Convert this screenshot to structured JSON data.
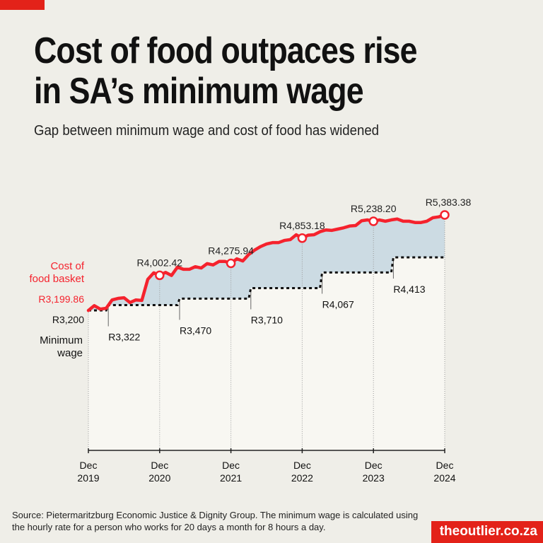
{
  "title": [
    "Cost of food outpaces rise",
    "in SA’s minimum wage"
  ],
  "subtitle": "Gap between minimum wage and cost of food has widened",
  "source": [
    "Source: Pietermaritzburg Economic Justice & Dignity Group. The minimum wage is calculated using",
    "the hourly rate for a person who works for 20 days a month for 8 hours a day."
  ],
  "brand": "theoutlier.co.za",
  "colors": {
    "food": "#f5222d",
    "wage": "#111111",
    "gap": "#ccdbe3",
    "accent": "#e32219"
  },
  "chart_data": {
    "type": "line",
    "ylim": [
      0,
      5500
    ],
    "x_start": "2019-12",
    "x_end": "2024-12",
    "x_ticks": [
      {
        "month": 0,
        "label": [
          "Dec",
          "2019"
        ]
      },
      {
        "month": 12,
        "label": [
          "Dec",
          "2020"
        ]
      },
      {
        "month": 24,
        "label": [
          "Dec",
          "2021"
        ]
      },
      {
        "month": 36,
        "label": [
          "Dec",
          "2022"
        ]
      },
      {
        "month": 48,
        "label": [
          "Dec",
          "2023"
        ]
      },
      {
        "month": 60,
        "label": [
          "Dec",
          "2024"
        ]
      }
    ],
    "series": [
      {
        "name": "Cost of food basket",
        "frequency": "monthly",
        "values": [
          3199.86,
          3310,
          3230,
          3250,
          3440,
          3475,
          3490,
          3380,
          3440,
          3430,
          3910,
          4060,
          4002.42,
          4070,
          4000,
          4190,
          4140,
          4140,
          4200,
          4170,
          4270,
          4240,
          4320,
          4320,
          4275.94,
          4380,
          4330,
          4480,
          4580,
          4660,
          4720,
          4750,
          4750,
          4800,
          4820,
          4930,
          4853.18,
          4920,
          4930,
          5000,
          5040,
          5030,
          5060,
          5090,
          5130,
          5140,
          5250,
          5270,
          5238.2,
          5270,
          5240,
          5270,
          5290,
          5240,
          5240,
          5210,
          5210,
          5240,
          5320,
          5340,
          5383.38
        ]
      },
      {
        "name": "Minimum wage",
        "steps": [
          {
            "from_month": 0,
            "value": 3200
          },
          {
            "from_month": 3,
            "value": 3322
          },
          {
            "from_month": 15,
            "value": 3470
          },
          {
            "from_month": 27,
            "value": 3710
          },
          {
            "from_month": 39,
            "value": 4067
          },
          {
            "from_month": 51,
            "value": 4413
          }
        ]
      }
    ],
    "series_labels": {
      "food": [
        "Cost of",
        "food basket"
      ],
      "wage": [
        "Minimum",
        "wage"
      ]
    },
    "food_annotations": [
      {
        "month": 0,
        "label": "R3,199.86"
      },
      {
        "month": 12,
        "label": "R4,002.42"
      },
      {
        "month": 24,
        "label": "R4,275.94"
      },
      {
        "month": 36,
        "label": "R4,853.18"
      },
      {
        "month": 48,
        "label": "R5,238.20"
      },
      {
        "month": 60,
        "label": "R5,383.38"
      }
    ],
    "wage_annotations": [
      {
        "month": 0,
        "label": "R3,200"
      },
      {
        "month": 3,
        "label": "R3,322"
      },
      {
        "month": 15,
        "label": "R3,470"
      },
      {
        "month": 27,
        "label": "R3,710"
      },
      {
        "month": 39,
        "label": "R4,067"
      },
      {
        "month": 51,
        "label": "R4,413"
      }
    ]
  }
}
